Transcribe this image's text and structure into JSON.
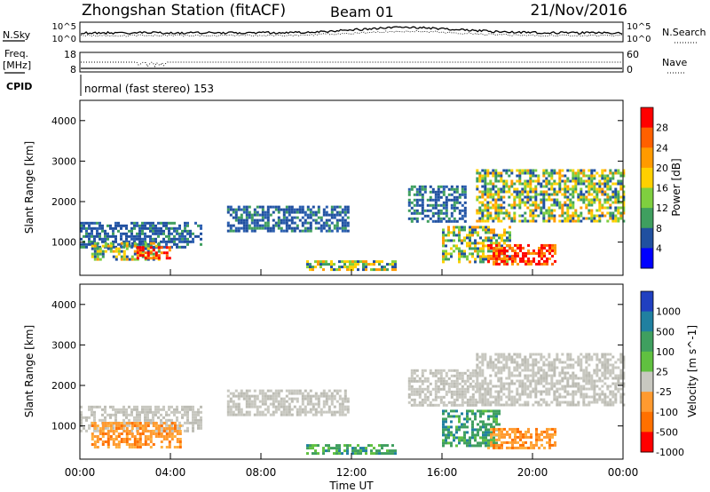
{
  "header": {
    "title": "Zhongshan Station (fitACF)",
    "beam": "Beam 01",
    "date": "21/Nov/2016"
  },
  "summary": {
    "nsky_label": "N.Sky",
    "nsky_ticks": [
      "10^5",
      "10^0"
    ],
    "nsearch_label": "N.Search",
    "nsearch_ticks": [
      "10^5",
      "10^0"
    ],
    "freq_label": "Freq.",
    "freq_unit": "[MHz]",
    "freq_ticks": [
      "18",
      "8"
    ],
    "nave_label": "Nave",
    "nave_ticks": [
      "60",
      "0"
    ],
    "cpid_label": "CPID",
    "cpid_text": "normal (fast stereo) 153"
  },
  "chart_data": [
    {
      "type": "heatmap",
      "name": "power-panel",
      "ylabel": "Slant Range [km]",
      "yticks": [
        "4000",
        "3000",
        "2000",
        "1000"
      ],
      "ylim": [
        180,
        4500
      ],
      "xlim_hours": [
        0,
        24
      ],
      "colorbar_label": "Power [dB]",
      "colorbar_ticks": [
        "28",
        "24",
        "20",
        "16",
        "12",
        "8",
        "4"
      ],
      "colorbar_colors": [
        "#ff0000",
        "#ff6000",
        "#ff9a00",
        "#ffd000",
        "#7fcf3f",
        "#3f9f5f",
        "#2050a0",
        "#0000ff"
      ],
      "echo_regions": [
        {
          "t": [
            0.0,
            5.3
          ],
          "r": [
            900,
            1500
          ],
          "level": "low"
        },
        {
          "t": [
            0.5,
            3.5
          ],
          "r": [
            600,
            1000
          ],
          "level": "mid"
        },
        {
          "t": [
            2.5,
            4.0
          ],
          "r": [
            600,
            900
          ],
          "level": "high"
        },
        {
          "t": [
            6.5,
            11.8
          ],
          "r": [
            1300,
            1900
          ],
          "level": "low"
        },
        {
          "t": [
            10.0,
            14.0
          ],
          "r": [
            350,
            550
          ],
          "level": "mid"
        },
        {
          "t": [
            14.5,
            17.0
          ],
          "r": [
            1500,
            2400
          ],
          "level": "low"
        },
        {
          "t": [
            16.0,
            19.0
          ],
          "r": [
            500,
            1400
          ],
          "level": "mid"
        },
        {
          "t": [
            18.0,
            21.0
          ],
          "r": [
            450,
            950
          ],
          "level": "high"
        },
        {
          "t": [
            17.5,
            24.0
          ],
          "r": [
            1500,
            2800
          ],
          "level": "mid"
        }
      ]
    },
    {
      "type": "heatmap",
      "name": "velocity-panel",
      "ylabel": "Slant Range [km]",
      "yticks": [
        "4000",
        "3000",
        "2000",
        "1000"
      ],
      "ylim": [
        180,
        4500
      ],
      "xlim_hours": [
        0,
        24
      ],
      "xticks": [
        "00:00",
        "04:00",
        "08:00",
        "12:00",
        "16:00",
        "20:00",
        "00:00"
      ],
      "xlabel": "Time UT",
      "colorbar_label": "Velocity [m s^-1]",
      "colorbar_ticks": [
        "1000",
        "500",
        "100",
        "25",
        "-25",
        "-100",
        "-500",
        "-1000"
      ],
      "colorbar_colors": [
        "#2040c0",
        "#2080a0",
        "#3f9f5f",
        "#60c040",
        "#c8c8c0",
        "#ff9a30",
        "#ff7000",
        "#ff0000"
      ],
      "echo_regions": [
        {
          "t": [
            0.0,
            5.3
          ],
          "r": [
            900,
            1500
          ],
          "class": "ground"
        },
        {
          "t": [
            0.5,
            4.5
          ],
          "r": [
            500,
            1100
          ],
          "class": "negative"
        },
        {
          "t": [
            6.5,
            11.8
          ],
          "r": [
            1300,
            1900
          ],
          "class": "ground"
        },
        {
          "t": [
            10.0,
            14.0
          ],
          "r": [
            350,
            550
          ],
          "class": "positive"
        },
        {
          "t": [
            14.5,
            17.5
          ],
          "r": [
            1500,
            2400
          ],
          "class": "ground"
        },
        {
          "t": [
            16.0,
            18.5
          ],
          "r": [
            500,
            1400
          ],
          "class": "positive"
        },
        {
          "t": [
            18.0,
            21.0
          ],
          "r": [
            450,
            950
          ],
          "class": "negative"
        },
        {
          "t": [
            17.5,
            24.0
          ],
          "r": [
            1500,
            2800
          ],
          "class": "ground"
        }
      ]
    }
  ]
}
